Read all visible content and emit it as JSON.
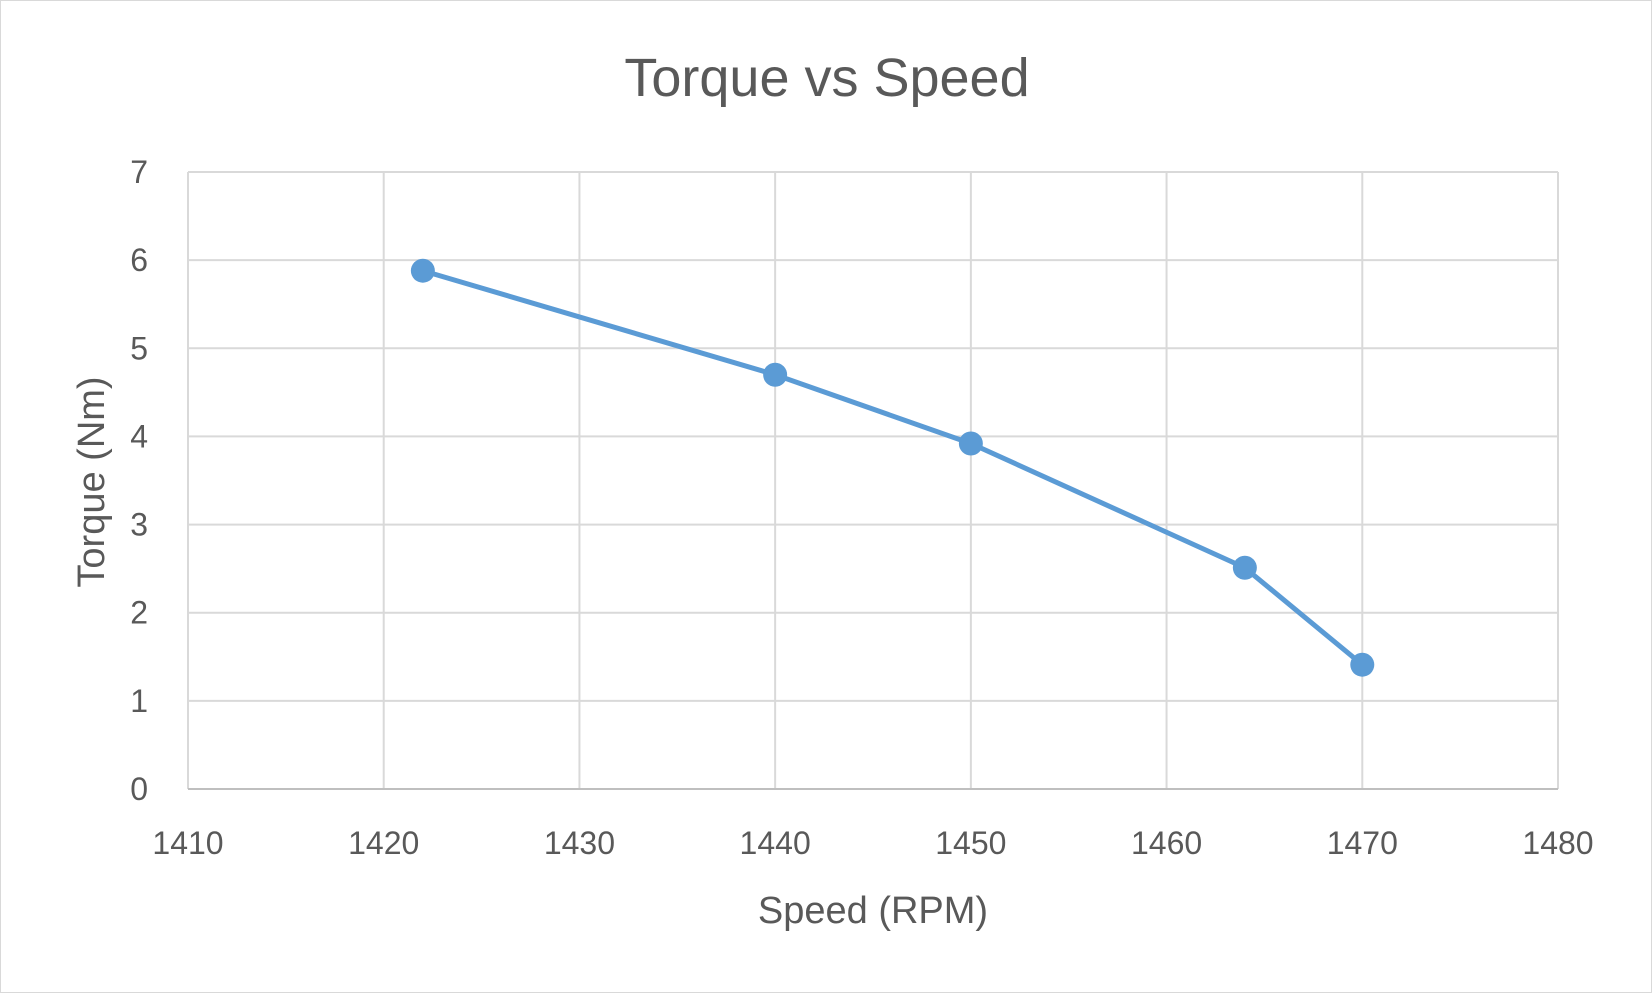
{
  "chart_data": {
    "type": "scatter",
    "title": "Torque vs Speed",
    "xlabel": "Speed (RPM)",
    "ylabel": "Torque (Nm)",
    "xlim": [
      1410,
      1480
    ],
    "ylim": [
      0,
      7
    ],
    "x_ticks": [
      1410,
      1420,
      1430,
      1440,
      1450,
      1460,
      1470,
      1480
    ],
    "y_ticks": [
      0,
      1,
      2,
      3,
      4,
      5,
      6,
      7
    ],
    "grid": true,
    "legend": "none",
    "series": [
      {
        "color": "#5b9bd5",
        "lines": true,
        "markers": true,
        "points": [
          {
            "x": 1422,
            "y": 5.88
          },
          {
            "x": 1440,
            "y": 4.7
          },
          {
            "x": 1450,
            "y": 3.92
          },
          {
            "x": 1464,
            "y": 2.51
          },
          {
            "x": 1470,
            "y": 1.41
          }
        ]
      }
    ]
  }
}
